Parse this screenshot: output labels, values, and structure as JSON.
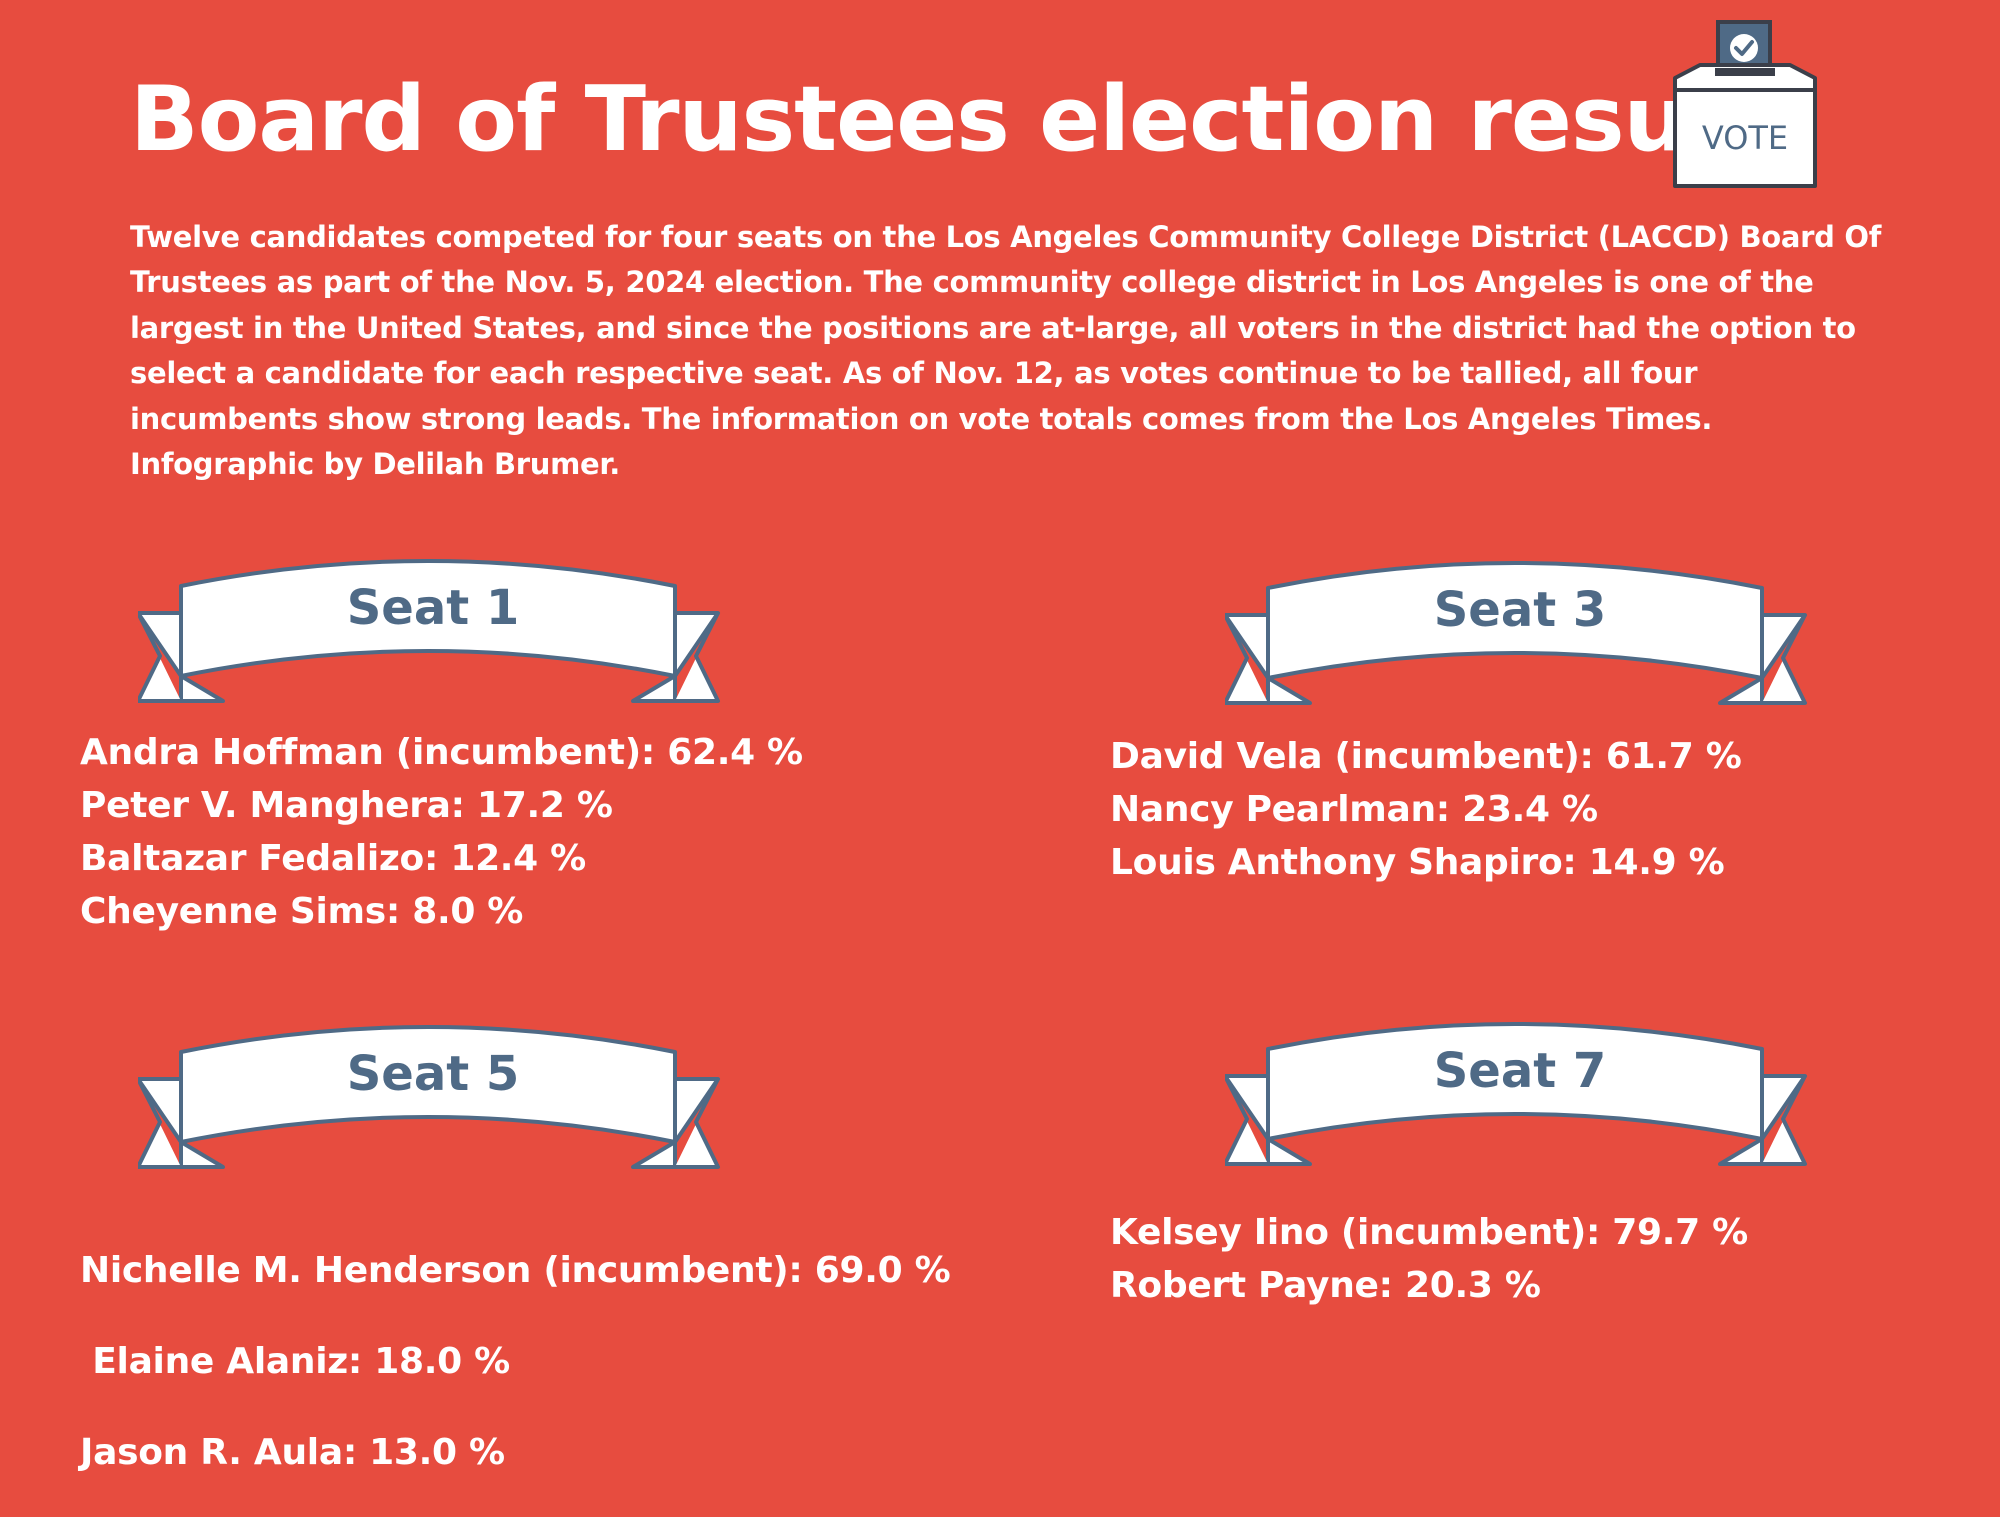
{
  "header": {
    "title": "Board of Trustees election results",
    "vote_box_label": "VOTE"
  },
  "intro": {
    "text": "Twelve candidates competed for four seats on the Los Angeles Community College District (LACCD) Board Of Trustees as part of the Nov. 5, 2024 election. The community college district in Los Angeles is one of the largest in the United States, and since the positions are at-large, all voters in the district had the option to select a candidate for each respective seat. As of Nov. 12, as votes continue to be tallied, all four incumbents show strong leads. The information on vote totals comes from the Los Angeles Times. Infographic by Delilah Brumer."
  },
  "seats": [
    {
      "label": "Seat 1",
      "results": [
        "Andra Hoffman (incumbent): 62.4 %",
        "Peter V. Manghera: 17.2 %",
        "Baltazar Fedalizo: 12.4 %",
        "Cheyenne Sims: 8.0 %"
      ]
    },
    {
      "label": "Seat 3",
      "results": [
        "David Vela (incumbent): 61.7 %",
        "Nancy Pearlman: 23.4 %",
        "Louis Anthony Shapiro: 14.9 %"
      ]
    },
    {
      "label": "Seat 5",
      "results": [
        "Nichelle M. Henderson (incumbent): 69.0 %",
        " Elaine Alaniz: 18.0 %",
        "Jason R. Aula: 13.0 %"
      ]
    },
    {
      "label": "Seat 7",
      "results": [
        "Kelsey Iino (incumbent): 79.7 %",
        "Robert Payne: 20.3 %"
      ]
    }
  ],
  "colors": {
    "background": "#e74c3f",
    "banner_fill": "#ffffff",
    "banner_stroke": "#4f6a86",
    "text": "#ffffff"
  }
}
